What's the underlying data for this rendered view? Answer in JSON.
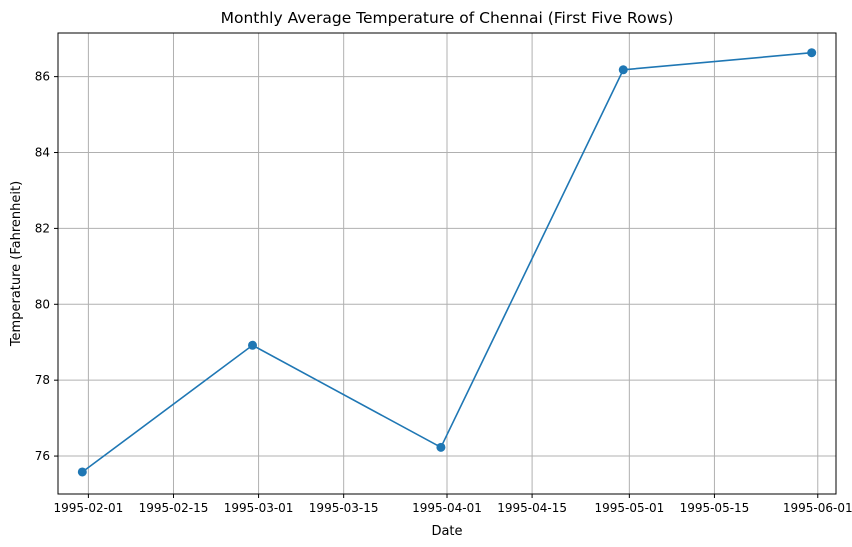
{
  "chart_data": {
    "type": "line",
    "title": "Monthly Average Temperature of Chennai (First Five Rows)",
    "xlabel": "Date",
    "ylabel": "Temperature (Fahrenheit)",
    "x_axis_type": "date",
    "xlim": [
      "1995-01-27",
      "1995-06-04"
    ],
    "ylim": [
      75.0,
      87.15
    ],
    "x_ticks": [
      "1995-02-01",
      "1995-02-15",
      "1995-03-01",
      "1995-03-15",
      "1995-04-01",
      "1995-04-15",
      "1995-05-01",
      "1995-05-15",
      "1995-06-01"
    ],
    "y_ticks": [
      76,
      78,
      80,
      82,
      84,
      86
    ],
    "grid": true,
    "legend": "none",
    "series": [
      {
        "color": "#1f77b4",
        "marker": "circle",
        "points": [
          {
            "x": "1995-01-31",
            "y": 75.58
          },
          {
            "x": "1995-02-28",
            "y": 78.92
          },
          {
            "x": "1995-03-31",
            "y": 76.23
          },
          {
            "x": "1995-04-30",
            "y": 86.18
          },
          {
            "x": "1995-05-31",
            "y": 86.63
          }
        ]
      }
    ]
  }
}
